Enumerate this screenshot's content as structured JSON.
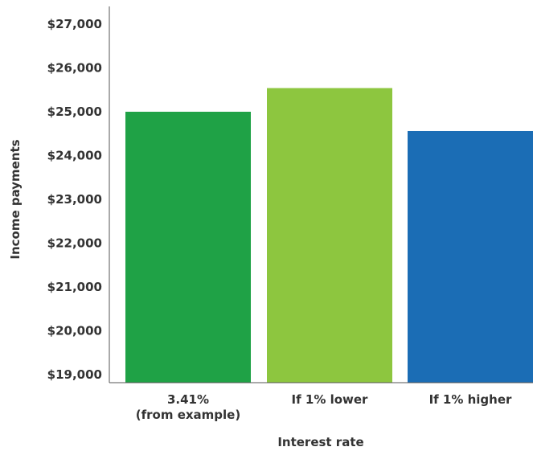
{
  "chart_data": {
    "type": "bar",
    "title": "",
    "xlabel": "Interest rate",
    "ylabel": "Income payments",
    "categories": [
      "3.41%\n(from example)",
      "If 1% lower",
      "If 1% higher"
    ],
    "values": [
      25000,
      25540,
      24560
    ],
    "colors": [
      "#1fa246",
      "#8dc63f",
      "#1b6db5"
    ],
    "ylim": [
      19000,
      27000
    ],
    "yticks": [
      19000,
      20000,
      21000,
      22000,
      23000,
      24000,
      25000,
      26000,
      27000
    ],
    "ytick_labels": [
      "$19,000",
      "$20,000",
      "$21,000",
      "$22,000",
      "$23,000",
      "$24,000",
      "$25,000",
      "$26,000",
      "$27,000"
    ],
    "grid": false,
    "legend": "none"
  }
}
